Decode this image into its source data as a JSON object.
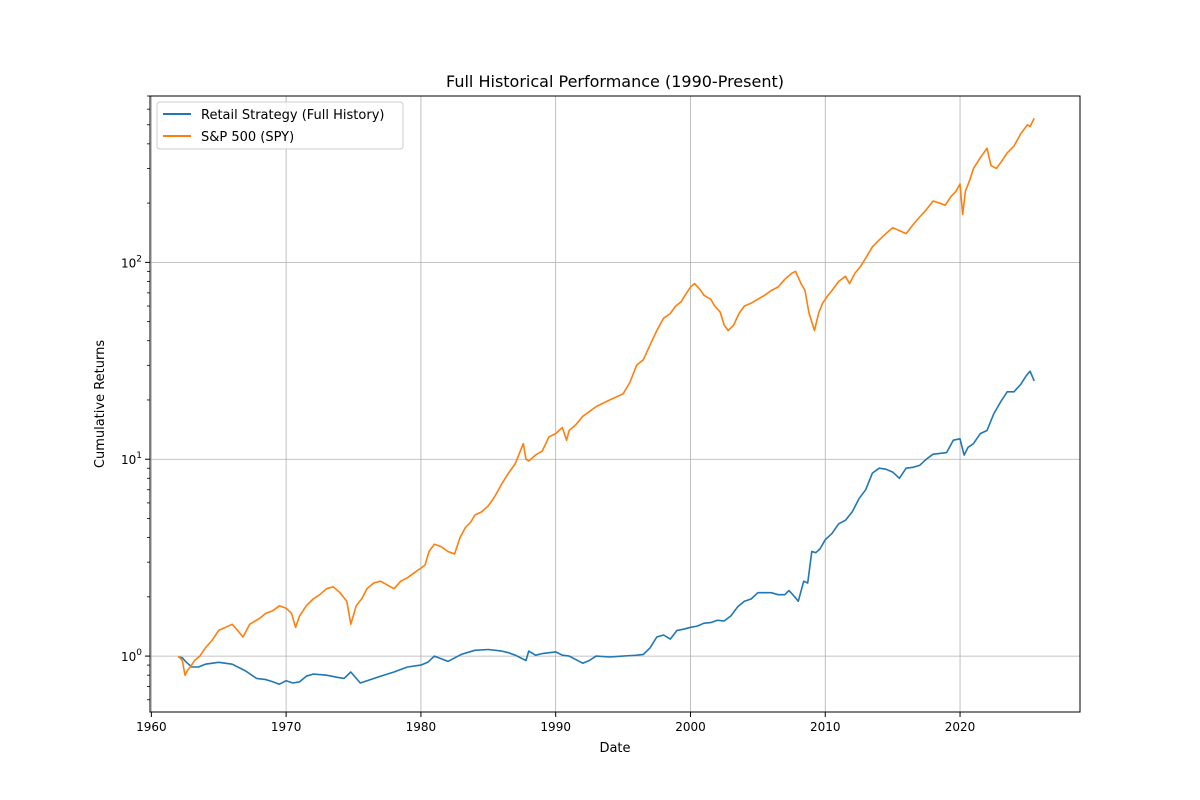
{
  "chart_data": {
    "type": "line",
    "title": "Full Historical Performance (1990-Present)",
    "xlabel": "Date",
    "ylabel": "Cumulative Returns",
    "x_scale": "time",
    "y_scale": "log",
    "xlim": [
      1959.9,
      2028.9
    ],
    "ylim": [
      0.52,
      700
    ],
    "x_ticks": [
      1960,
      1970,
      1980,
      1990,
      2000,
      2010,
      2020
    ],
    "x_tick_labels": [
      "1960",
      "1970",
      "1980",
      "1990",
      "2000",
      "2010",
      "2020"
    ],
    "y_ticks": [
      1,
      10,
      100
    ],
    "y_tick_labels": [
      {
        "base": "10",
        "exp": "0"
      },
      {
        "base": "10",
        "exp": "1"
      },
      {
        "base": "10",
        "exp": "2"
      }
    ],
    "grid": true,
    "legend_position": "top-left",
    "series": [
      {
        "name": "Retail Strategy (Full History)",
        "color": "#1f77b4",
        "x": [
          1962.0,
          1962.3,
          1962.6,
          1963.0,
          1963.5,
          1964.0,
          1965.0,
          1966.0,
          1967.0,
          1967.8,
          1968.5,
          1969.0,
          1969.5,
          1970.0,
          1970.5,
          1971.0,
          1971.5,
          1972.0,
          1973.0,
          1973.8,
          1974.3,
          1974.8,
          1975.5,
          1976.0,
          1977.0,
          1978.0,
          1979.0,
          1980.0,
          1980.5,
          1981.0,
          1982.0,
          1983.0,
          1984.0,
          1985.0,
          1986.0,
          1986.5,
          1987.0,
          1987.8,
          1988.0,
          1988.5,
          1989.0,
          1990.0,
          1990.5,
          1991.0,
          1992.0,
          1992.5,
          1993.0,
          1994.0,
          1995.0,
          1996.0,
          1996.5,
          1997.0,
          1997.5,
          1998.0,
          1998.5,
          1999.0,
          1999.5,
          2000.0,
          2000.5,
          2001.0,
          2001.5,
          2002.0,
          2002.5,
          2003.0,
          2003.5,
          2004.0,
          2004.5,
          2005.0,
          2006.0,
          2006.5,
          2007.0,
          2007.3,
          2007.6,
          2008.0,
          2008.4,
          2008.7,
          2009.0,
          2009.3,
          2009.6,
          2010.0,
          2010.5,
          2011.0,
          2011.5,
          2012.0,
          2012.5,
          2013.0,
          2013.5,
          2014.0,
          2014.5,
          2015.0,
          2015.5,
          2016.0,
          2016.5,
          2017.0,
          2017.5,
          2018.0,
          2018.5,
          2019.0,
          2019.5,
          2020.0,
          2020.3,
          2020.6,
          2021.0,
          2021.5,
          2022.0,
          2022.5,
          2023.0,
          2023.5,
          2024.0,
          2024.5,
          2024.9,
          2025.2,
          2025.5
        ],
        "values": [
          0.99,
          0.98,
          0.93,
          0.88,
          0.88,
          0.91,
          0.93,
          0.91,
          0.84,
          0.77,
          0.76,
          0.74,
          0.72,
          0.75,
          0.73,
          0.74,
          0.79,
          0.81,
          0.8,
          0.78,
          0.77,
          0.83,
          0.73,
          0.75,
          0.79,
          0.83,
          0.88,
          0.9,
          0.93,
          1.0,
          0.94,
          1.02,
          1.07,
          1.08,
          1.06,
          1.04,
          1.01,
          0.95,
          1.06,
          1.01,
          1.03,
          1.05,
          1.01,
          1.0,
          0.92,
          0.95,
          1.0,
          0.99,
          1.0,
          1.01,
          1.02,
          1.1,
          1.25,
          1.28,
          1.22,
          1.35,
          1.37,
          1.4,
          1.42,
          1.47,
          1.48,
          1.52,
          1.51,
          1.6,
          1.78,
          1.9,
          1.95,
          2.1,
          2.1,
          2.05,
          2.05,
          2.15,
          2.05,
          1.9,
          2.4,
          2.35,
          3.4,
          3.35,
          3.5,
          3.9,
          4.2,
          4.7,
          4.9,
          5.4,
          6.3,
          7.0,
          8.5,
          9.0,
          8.9,
          8.6,
          8.0,
          9.0,
          9.1,
          9.3,
          10.0,
          10.6,
          10.7,
          10.8,
          12.5,
          12.7,
          10.5,
          11.5,
          12.0,
          13.5,
          14.0,
          17.0,
          19.5,
          22.0,
          22.0,
          24.0,
          26.5,
          28.0,
          25.0
        ]
      },
      {
        "name": "S&P 500 (SPY)",
        "color": "#ff7f0e",
        "x": [
          1962.0,
          1962.3,
          1962.5,
          1962.7,
          1962.9,
          1963.2,
          1963.6,
          1964.0,
          1964.5,
          1965.0,
          1965.5,
          1966.0,
          1966.4,
          1966.8,
          1967.3,
          1968.0,
          1968.5,
          1969.0,
          1969.5,
          1970.0,
          1970.4,
          1970.7,
          1971.0,
          1971.5,
          1972.0,
          1972.5,
          1973.0,
          1973.5,
          1974.0,
          1974.5,
          1974.8,
          1975.2,
          1975.6,
          1976.0,
          1976.5,
          1977.0,
          1977.5,
          1978.0,
          1978.5,
          1979.0,
          1979.5,
          1980.0,
          1980.3,
          1980.6,
          1981.0,
          1981.5,
          1982.0,
          1982.5,
          1982.9,
          1983.3,
          1983.7,
          1984.0,
          1984.5,
          1985.0,
          1985.5,
          1986.0,
          1986.5,
          1987.0,
          1987.6,
          1987.8,
          1988.0,
          1988.5,
          1989.0,
          1989.5,
          1990.0,
          1990.5,
          1990.8,
          1991.0,
          1991.5,
          1992.0,
          1993.0,
          1994.0,
          1995.0,
          1995.5,
          1996.0,
          1996.5,
          1997.0,
          1997.5,
          1998.0,
          1998.5,
          1998.9,
          1999.3,
          1999.6,
          2000.0,
          2000.3,
          2000.7,
          2001.0,
          2001.5,
          2001.8,
          2002.2,
          2002.5,
          2002.8,
          2003.2,
          2003.6,
          2004.0,
          2004.5,
          2005.0,
          2005.5,
          2006.0,
          2006.5,
          2007.0,
          2007.5,
          2007.8,
          2008.2,
          2008.5,
          2008.8,
          2009.2,
          2009.5,
          2009.8,
          2010.2,
          2010.5,
          2011.0,
          2011.5,
          2011.8,
          2012.2,
          2012.6,
          2013.0,
          2013.5,
          2014.0,
          2014.5,
          2015.0,
          2015.5,
          2016.0,
          2016.5,
          2017.0,
          2017.5,
          2018.0,
          2018.5,
          2018.9,
          2019.3,
          2019.7,
          2020.0,
          2020.2,
          2020.4,
          2020.7,
          2021.0,
          2021.5,
          2022.0,
          2022.3,
          2022.7,
          2023.0,
          2023.5,
          2024.0,
          2024.5,
          2025.0,
          2025.2,
          2025.5
        ],
        "values": [
          1.0,
          0.95,
          0.8,
          0.85,
          0.88,
          0.95,
          1.0,
          1.1,
          1.2,
          1.35,
          1.4,
          1.45,
          1.35,
          1.25,
          1.45,
          1.55,
          1.65,
          1.7,
          1.8,
          1.75,
          1.65,
          1.4,
          1.6,
          1.8,
          1.95,
          2.05,
          2.2,
          2.25,
          2.1,
          1.9,
          1.45,
          1.8,
          1.95,
          2.2,
          2.35,
          2.4,
          2.3,
          2.2,
          2.4,
          2.5,
          2.65,
          2.8,
          2.9,
          3.4,
          3.7,
          3.6,
          3.4,
          3.3,
          4.0,
          4.5,
          4.8,
          5.2,
          5.4,
          5.8,
          6.5,
          7.5,
          8.5,
          9.5,
          12.0,
          10.0,
          9.8,
          10.5,
          11.0,
          13.0,
          13.5,
          14.5,
          12.5,
          14.0,
          15.0,
          16.5,
          18.5,
          20.0,
          21.5,
          24.5,
          30.0,
          32.0,
          38.0,
          45.0,
          52.0,
          55.0,
          60.0,
          63.0,
          68.0,
          75.0,
          78.0,
          73.0,
          68.0,
          65.0,
          60.0,
          56.0,
          48.0,
          45.0,
          48.0,
          55.0,
          60.0,
          62.0,
          65.0,
          68.0,
          72.0,
          75.0,
          82.0,
          88.0,
          90.0,
          78.0,
          72.0,
          55.0,
          45.0,
          55.0,
          62.0,
          68.0,
          72.0,
          80.0,
          85.0,
          78.0,
          88.0,
          95.0,
          105.0,
          120.0,
          130.0,
          140.0,
          150.0,
          145.0,
          140.0,
          155.0,
          170.0,
          185.0,
          205.0,
          200.0,
          195.0,
          215.0,
          230.0,
          250.0,
          175.0,
          230.0,
          260.0,
          300.0,
          340.0,
          380.0,
          310.0,
          300.0,
          320.0,
          360.0,
          390.0,
          450.0,
          500.0,
          490.0,
          540.0
        ]
      }
    ]
  }
}
